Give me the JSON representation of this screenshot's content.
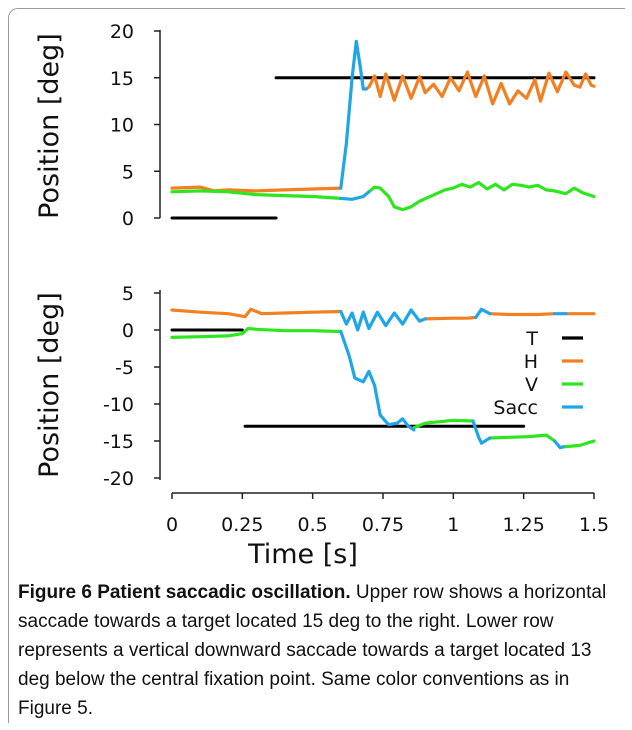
{
  "chart_data": [
    {
      "type": "line",
      "ylabel": "Position [deg]",
      "xlim": [
        0,
        1.5
      ],
      "ylim": [
        0,
        20
      ],
      "yticks": [
        "20",
        "15",
        "10",
        "5",
        "0"
      ],
      "yticks_values": [
        20,
        15,
        10,
        5,
        0
      ],
      "grid": false,
      "series": [
        {
          "name": "T",
          "color": "#000000",
          "segments": [
            [
              [
                0,
                0
              ],
              [
                0.37,
                0
              ]
            ],
            [
              [
                0.37,
                15
              ],
              [
                1.5,
                15
              ]
            ]
          ]
        },
        {
          "name": "H",
          "color": "#f28022",
          "segments": [
            [
              [
                0,
                3.2
              ],
              [
                0.1,
                3.3
              ],
              [
                0.15,
                2.9
              ],
              [
                0.2,
                3.0
              ],
              [
                0.3,
                2.9
              ],
              [
                0.4,
                3.0
              ],
              [
                0.5,
                3.1
              ],
              [
                0.6,
                3.2
              ]
            ],
            [
              [
                0.69,
                13.8
              ],
              [
                0.7,
                14.0
              ],
              [
                0.72,
                15.2
              ],
              [
                0.74,
                13.0
              ],
              [
                0.76,
                15.4
              ],
              [
                0.79,
                12.6
              ],
              [
                0.82,
                15.2
              ],
              [
                0.85,
                12.8
              ],
              [
                0.88,
                15.1
              ],
              [
                0.9,
                13.4
              ],
              [
                0.93,
                14.3
              ],
              [
                0.96,
                13.0
              ],
              [
                0.99,
                15.0
              ],
              [
                1.02,
                13.6
              ],
              [
                1.05,
                15.6
              ],
              [
                1.08,
                13.0
              ],
              [
                1.11,
                15.2
              ],
              [
                1.14,
                12.2
              ],
              [
                1.17,
                14.4
              ],
              [
                1.2,
                12.2
              ],
              [
                1.23,
                13.6
              ],
              [
                1.26,
                12.8
              ],
              [
                1.29,
                14.8
              ],
              [
                1.31,
                12.5
              ],
              [
                1.34,
                15.5
              ],
              [
                1.37,
                13.5
              ],
              [
                1.4,
                15.6
              ],
              [
                1.43,
                14.2
              ],
              [
                1.45,
                14.0
              ],
              [
                1.47,
                15.4
              ],
              [
                1.49,
                14.2
              ],
              [
                1.5,
                14.1
              ]
            ]
          ]
        },
        {
          "name": "V",
          "color": "#2ee61e",
          "segments": [
            [
              [
                0,
                2.8
              ],
              [
                0.1,
                2.9
              ],
              [
                0.2,
                2.8
              ],
              [
                0.3,
                2.5
              ],
              [
                0.4,
                2.4
              ],
              [
                0.5,
                2.3
              ],
              [
                0.6,
                2.1
              ]
            ],
            [
              [
                0.7,
                2.8
              ],
              [
                0.72,
                3.3
              ],
              [
                0.74,
                3.2
              ],
              [
                0.77,
                2.3
              ],
              [
                0.79,
                1.2
              ],
              [
                0.82,
                0.9
              ],
              [
                0.85,
                1.2
              ],
              [
                0.88,
                1.8
              ],
              [
                0.91,
                2.2
              ],
              [
                0.94,
                2.6
              ],
              [
                0.97,
                3.0
              ],
              [
                1.0,
                3.2
              ],
              [
                1.03,
                3.6
              ],
              [
                1.06,
                3.3
              ],
              [
                1.09,
                3.8
              ],
              [
                1.12,
                3.1
              ],
              [
                1.15,
                3.6
              ],
              [
                1.18,
                3.0
              ],
              [
                1.21,
                3.6
              ],
              [
                1.24,
                3.5
              ],
              [
                1.27,
                3.3
              ],
              [
                1.3,
                3.5
              ],
              [
                1.33,
                3.0
              ],
              [
                1.36,
                2.9
              ],
              [
                1.4,
                2.6
              ],
              [
                1.43,
                3.2
              ],
              [
                1.46,
                2.7
              ],
              [
                1.5,
                2.3
              ]
            ]
          ]
        },
        {
          "name": "Sacc",
          "color": "#1fa6e8",
          "segments": [
            [
              [
                0.6,
                3.2
              ],
              [
                0.62,
                8.0
              ],
              [
                0.64,
                15.0
              ],
              [
                0.655,
                18.9
              ],
              [
                0.67,
                16.0
              ],
              [
                0.68,
                13.8
              ],
              [
                0.69,
                13.8
              ]
            ],
            [
              [
                0.6,
                2.1
              ],
              [
                0.64,
                2.0
              ],
              [
                0.68,
                2.3
              ],
              [
                0.7,
                2.8
              ]
            ]
          ]
        }
      ]
    },
    {
      "type": "line",
      "ylabel": "Position [deg]",
      "xlabel": "Time [s]",
      "xlim": [
        0,
        1.5
      ],
      "ylim": [
        -20,
        5
      ],
      "xticks": [
        "0",
        "0.25",
        "0.5",
        "0.75",
        "1",
        "1.25",
        "1.5"
      ],
      "xticks_values": [
        0,
        0.25,
        0.5,
        0.75,
        1,
        1.25,
        1.5
      ],
      "yticks": [
        "5",
        "0",
        "-5",
        "-10",
        "-15",
        "-20"
      ],
      "yticks_values": [
        5,
        0,
        -5,
        -10,
        -15,
        -20
      ],
      "grid": false,
      "legend": "right",
      "series": [
        {
          "name": "T",
          "color": "#000000",
          "segments": [
            [
              [
                0,
                0
              ],
              [
                0.25,
                0
              ]
            ],
            [
              [
                0.26,
                -13
              ],
              [
                1.25,
                -13
              ]
            ]
          ]
        },
        {
          "name": "H",
          "color": "#f28022",
          "segments": [
            [
              [
                0,
                2.7
              ],
              [
                0.1,
                2.4
              ],
              [
                0.2,
                2.2
              ],
              [
                0.26,
                1.8
              ],
              [
                0.28,
                2.8
              ],
              [
                0.32,
                2.2
              ],
              [
                0.4,
                2.3
              ],
              [
                0.5,
                2.4
              ],
              [
                0.6,
                2.5
              ]
            ],
            [
              [
                0.9,
                1.5
              ],
              [
                1.0,
                1.6
              ],
              [
                1.05,
                1.6
              ],
              [
                1.08,
                1.7
              ]
            ],
            [
              [
                1.13,
                2.2
              ],
              [
                1.2,
                2.1
              ],
              [
                1.3,
                2.1
              ],
              [
                1.36,
                2.2
              ]
            ],
            [
              [
                1.4,
                2.2
              ],
              [
                1.5,
                2.2
              ]
            ]
          ]
        },
        {
          "name": "V",
          "color": "#2ee61e",
          "segments": [
            [
              [
                0,
                -1.0
              ],
              [
                0.1,
                -0.9
              ],
              [
                0.2,
                -0.8
              ],
              [
                0.25,
                -0.5
              ],
              [
                0.27,
                0.2
              ],
              [
                0.3,
                0.1
              ],
              [
                0.4,
                -0.1
              ],
              [
                0.5,
                -0.1
              ],
              [
                0.6,
                -0.2
              ]
            ],
            [
              [
                0.86,
                -13.2
              ],
              [
                0.9,
                -12.6
              ],
              [
                1.0,
                -12.2
              ],
              [
                1.07,
                -12.3
              ]
            ],
            [
              [
                1.13,
                -14.6
              ],
              [
                1.2,
                -14.5
              ],
              [
                1.27,
                -14.4
              ],
              [
                1.33,
                -14.2
              ],
              [
                1.36,
                -15.0
              ]
            ],
            [
              [
                1.39,
                -15.8
              ],
              [
                1.45,
                -15.6
              ],
              [
                1.5,
                -15.0
              ]
            ]
          ]
        },
        {
          "name": "Sacc",
          "color": "#1fa6e8",
          "segments": [
            [
              [
                0.6,
                2.5
              ],
              [
                0.62,
                0.8
              ],
              [
                0.64,
                2.3
              ],
              [
                0.66,
                0.0
              ],
              [
                0.68,
                2.4
              ],
              [
                0.7,
                0.2
              ],
              [
                0.73,
                2.4
              ],
              [
                0.76,
                0.6
              ],
              [
                0.79,
                2.3
              ],
              [
                0.82,
                0.8
              ],
              [
                0.85,
                2.7
              ],
              [
                0.88,
                1.2
              ],
              [
                0.9,
                1.5
              ]
            ],
            [
              [
                0.6,
                -0.2
              ],
              [
                0.63,
                -3.5
              ],
              [
                0.65,
                -6.5
              ],
              [
                0.68,
                -7.0
              ],
              [
                0.7,
                -5.6
              ],
              [
                0.72,
                -7.5
              ],
              [
                0.74,
                -11.5
              ],
              [
                0.77,
                -12.8
              ],
              [
                0.8,
                -12.6
              ],
              [
                0.82,
                -12.0
              ],
              [
                0.84,
                -13.0
              ],
              [
                0.86,
                -13.5
              ]
            ],
            [
              [
                1.07,
                -12.3
              ],
              [
                1.09,
                -14.5
              ],
              [
                1.1,
                -15.3
              ],
              [
                1.13,
                -14.6
              ]
            ],
            [
              [
                1.08,
                1.7
              ],
              [
                1.1,
                2.8
              ],
              [
                1.13,
                2.2
              ]
            ],
            [
              [
                1.36,
                2.2
              ],
              [
                1.4,
                2.2
              ]
            ],
            [
              [
                1.36,
                -15.0
              ],
              [
                1.38,
                -15.9
              ],
              [
                1.39,
                -15.8
              ]
            ]
          ]
        }
      ]
    }
  ],
  "caption": {
    "label": "Figure 6",
    "title": "Patient saccadic oscillation.",
    "text": "Upper row shows a horizontal saccade towards a target located 15 deg to the right. Lower row represents a vertical downward saccade towards a target located 13 deg below the central fixation point. Same color conventions as in Figure 5."
  }
}
